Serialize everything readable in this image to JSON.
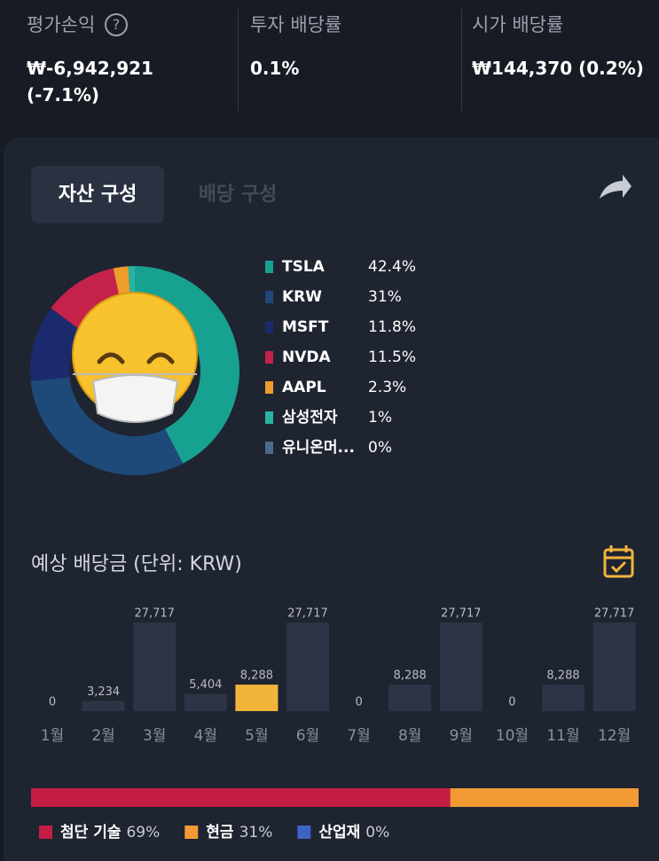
{
  "summary": [
    {
      "label": "평가손익",
      "value": "₩-6,942,921 (-7.1%)"
    },
    {
      "label": "투자 배당률",
      "value": "0.1%"
    },
    {
      "label": "시가 배당률",
      "value": "₩144,370 (0.2%)"
    }
  ],
  "tabs": [
    "자산 구성",
    "배당 구성"
  ],
  "chart_data": [
    {
      "type": "pie",
      "categories": [
        "TSLA",
        "KRW",
        "MSFT",
        "NVDA",
        "AAPL",
        "삼성전자",
        "유니온머..."
      ],
      "values": [
        42.4,
        31,
        11.8,
        11.5,
        2.3,
        1,
        0
      ],
      "value_labels": [
        "42.4%",
        "31%",
        "11.8%",
        "11.5%",
        "2.3%",
        "1%",
        "0%"
      ],
      "colors": [
        "#17a190",
        "#1d4a78",
        "#1b2a6c",
        "#c4224a",
        "#ee9d2c",
        "#29b3a2",
        "#4d6a8a"
      ]
    },
    {
      "type": "bar",
      "title": "예상 배당금 (단위: KRW)",
      "categories": [
        "1월",
        "2월",
        "3월",
        "4월",
        "5월",
        "6월",
        "7월",
        "8월",
        "9월",
        "10월",
        "11월",
        "12월"
      ],
      "values": [
        0,
        3234,
        27717,
        5404,
        8288,
        27717,
        0,
        8288,
        27717,
        0,
        8288,
        27717
      ],
      "value_labels": [
        "0",
        "3,234",
        "27,717",
        "5,404",
        "8,288",
        "27,717",
        "0",
        "8,288",
        "27,717",
        "0",
        "8,288",
        "27,717"
      ],
      "colors": [
        "#2c3446",
        "#2c3446",
        "#2c3446",
        "#2c3446",
        "#f2b53c",
        "#2c3446",
        "#2c3446",
        "#2c3446",
        "#2c3446",
        "#2c3446",
        "#2c3446",
        "#2c3446"
      ]
    },
    {
      "type": "stacked-bar",
      "series": [
        {
          "name": "첨단 기술",
          "color": "#c41e45",
          "values": [
            69
          ],
          "value_labels": [
            "69%"
          ]
        },
        {
          "name": "현금",
          "color": "#f39a35",
          "values": [
            31
          ],
          "value_labels": [
            "31%"
          ]
        },
        {
          "name": "산업재",
          "color": "#3d63c4",
          "values": [
            0
          ],
          "value_labels": [
            "0%"
          ]
        }
      ]
    }
  ]
}
